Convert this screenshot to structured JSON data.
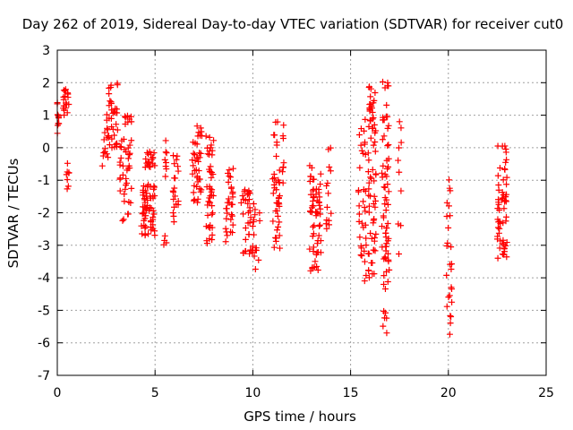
{
  "chart_data": {
    "type": "scatter",
    "title": "Day 262 of 2019, Sidereal Day-to-day VTEC variation (SDTVAR) for receiver cut0",
    "xlabel": "GPS time / hours",
    "ylabel": "SDTVAR / TECUs",
    "xlim": [
      0,
      25
    ],
    "ylim": [
      -7,
      3
    ],
    "xticks": [
      "0",
      "5",
      "10",
      "15",
      "20",
      "25"
    ],
    "yticks": [
      "-7",
      "-6",
      "-5",
      "-4",
      "-3",
      "-2",
      "-1",
      "0",
      "1",
      "2",
      "3"
    ],
    "grid": true,
    "marker": "+",
    "color": "#ff0000",
    "clusters": [
      {
        "x": [
          0.0,
          0.1
        ],
        "y": [
          0.2,
          1.4
        ],
        "n": 10
      },
      {
        "x": [
          0.3,
          0.6
        ],
        "y": [
          1.0,
          1.8
        ],
        "n": 18
      },
      {
        "x": [
          0.4,
          0.6
        ],
        "y": [
          -1.3,
          -0.4
        ],
        "n": 8
      },
      {
        "x": [
          2.3,
          2.6
        ],
        "y": [
          -0.8,
          1.1
        ],
        "n": 14
      },
      {
        "x": [
          2.6,
          3.1
        ],
        "y": [
          0.0,
          2.0
        ],
        "n": 35
      },
      {
        "x": [
          3.2,
          3.8
        ],
        "y": [
          -2.3,
          1.1
        ],
        "n": 45
      },
      {
        "x": [
          4.3,
          5.0
        ],
        "y": [
          -2.7,
          -1.1
        ],
        "n": 60
      },
      {
        "x": [
          4.5,
          5.0
        ],
        "y": [
          -0.6,
          -0.1
        ],
        "n": 18
      },
      {
        "x": [
          5.5,
          5.6
        ],
        "y": [
          -1.0,
          0.5
        ],
        "n": 8
      },
      {
        "x": [
          5.4,
          5.6
        ],
        "y": [
          -3.0,
          -2.7
        ],
        "n": 4
      },
      {
        "x": [
          5.9,
          6.2
        ],
        "y": [
          -2.3,
          0.0
        ],
        "n": 20
      },
      {
        "x": [
          6.9,
          7.4
        ],
        "y": [
          -1.7,
          0.8
        ],
        "n": 40
      },
      {
        "x": [
          7.6,
          8.0
        ],
        "y": [
          -3.0,
          0.7
        ],
        "n": 45
      },
      {
        "x": [
          8.6,
          9.0
        ],
        "y": [
          -2.9,
          -0.6
        ],
        "n": 30
      },
      {
        "x": [
          9.4,
          9.9
        ],
        "y": [
          -3.3,
          -1.2
        ],
        "n": 30
      },
      {
        "x": [
          9.9,
          10.4
        ],
        "y": [
          -3.9,
          -1.7
        ],
        "n": 18
      },
      {
        "x": [
          11.0,
          11.4
        ],
        "y": [
          -3.3,
          0.8
        ],
        "n": 40
      },
      {
        "x": [
          11.5,
          11.6
        ],
        "y": [
          -1.2,
          0.8
        ],
        "n": 8
      },
      {
        "x": [
          12.9,
          13.5
        ],
        "y": [
          -3.8,
          -0.5
        ],
        "n": 60
      },
      {
        "x": [
          13.7,
          14.0
        ],
        "y": [
          -2.8,
          0.0
        ],
        "n": 14
      },
      {
        "x": [
          15.4,
          15.8
        ],
        "y": [
          -4.1,
          0.9
        ],
        "n": 35
      },
      {
        "x": [
          15.9,
          16.3
        ],
        "y": [
          -4.1,
          1.9
        ],
        "n": 70
      },
      {
        "x": [
          16.6,
          17.0
        ],
        "y": [
          -5.7,
          2.1
        ],
        "n": 70
      },
      {
        "x": [
          17.4,
          17.6
        ],
        "y": [
          -3.5,
          1.2
        ],
        "n": 10
      },
      {
        "x": [
          19.9,
          20.2
        ],
        "y": [
          -6.0,
          -0.9
        ],
        "n": 25
      },
      {
        "x": [
          22.5,
          23.0
        ],
        "y": [
          -3.4,
          0.1
        ],
        "n": 60
      }
    ]
  }
}
